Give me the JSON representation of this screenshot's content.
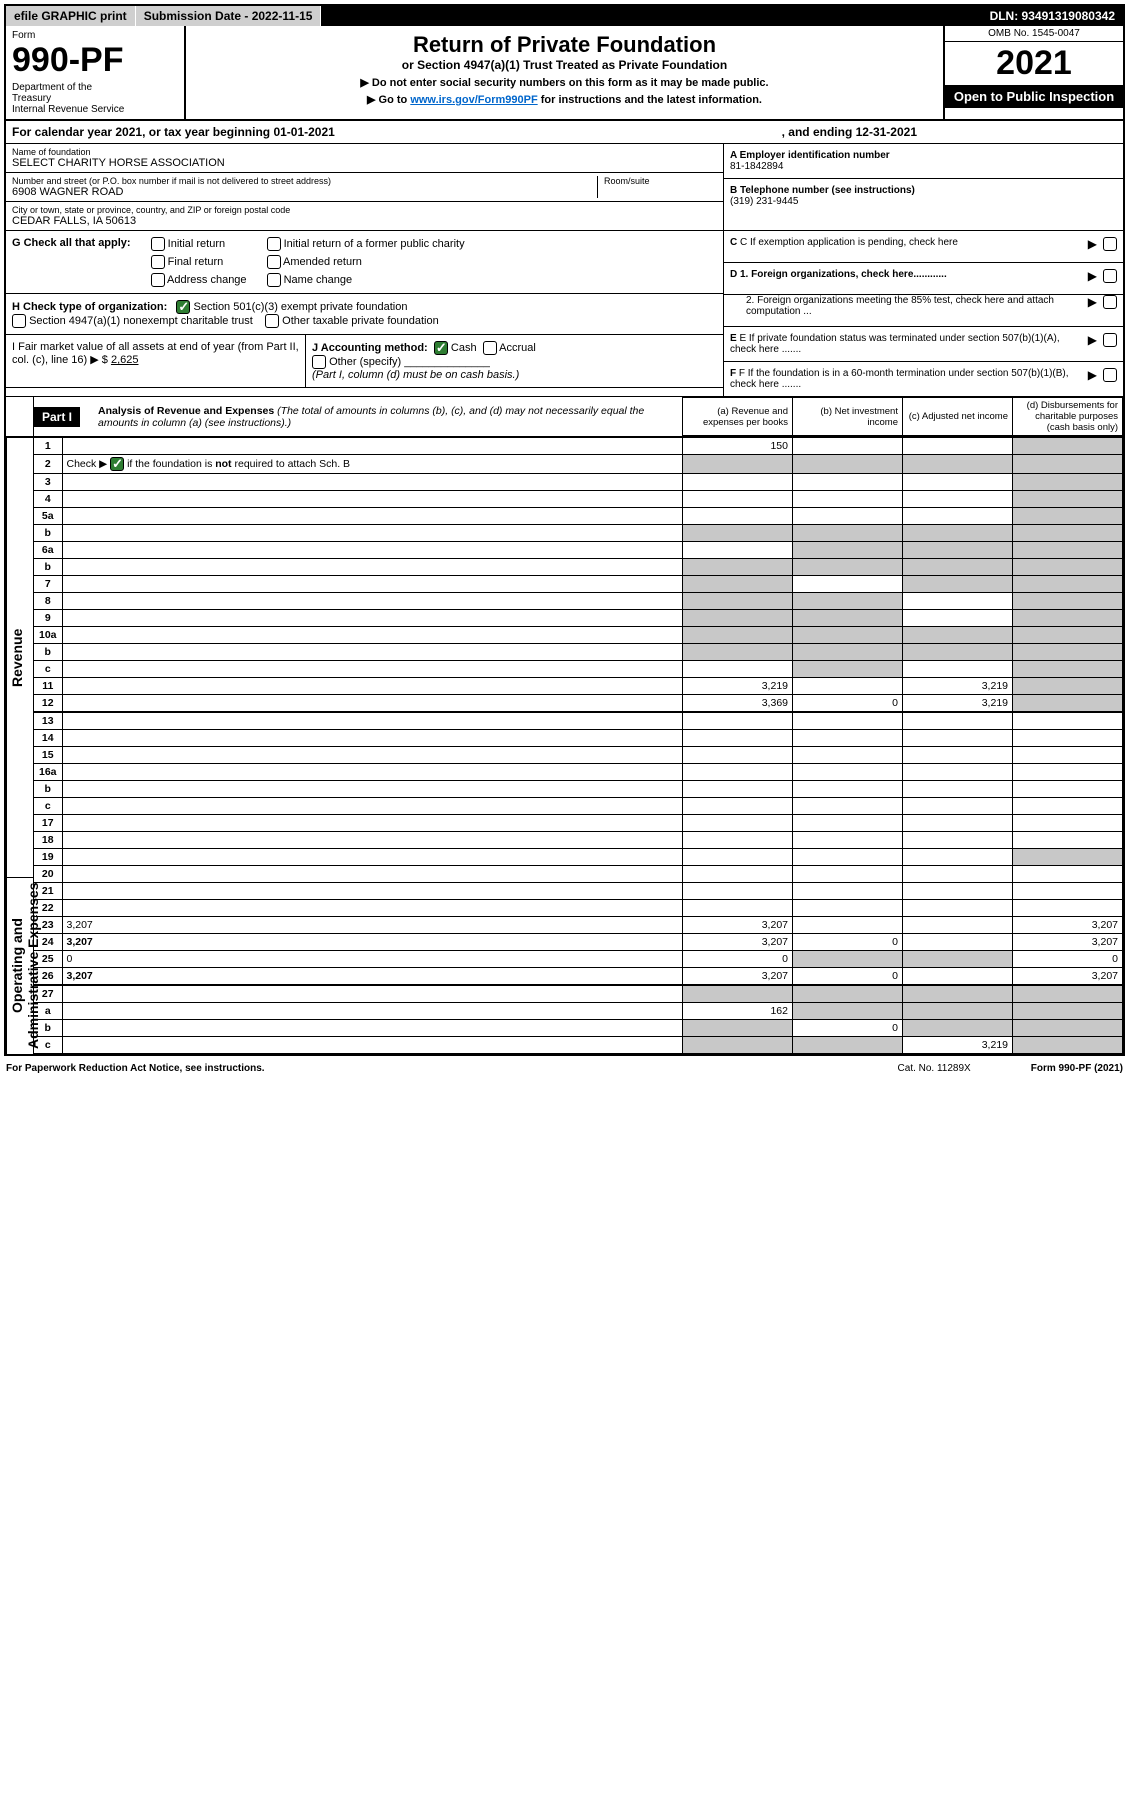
{
  "topbar": {
    "efile": "efile GRAPHIC print",
    "sub_label": "Submission Date - 2022-11-15",
    "dln": "DLN: 93491319080342"
  },
  "header": {
    "form_word": "Form",
    "form_num": "990-PF",
    "dept": "Department of the Treasury\nInternal Revenue Service",
    "title": "Return of Private Foundation",
    "subtitle1": "or Section 4947(a)(1) Trust Treated as Private Foundation",
    "subtitle2a": "▶ Do not enter social security numbers on this form as it may be made public.",
    "subtitle2b": "▶ Go to ",
    "link": "www.irs.gov/Form990PF",
    "subtitle2c": " for instructions and the latest information.",
    "omb": "OMB No. 1545-0047",
    "year": "2021",
    "open": "Open to Public Inspection"
  },
  "calendar": {
    "text": "For calendar year 2021, or tax year beginning 01-01-2021",
    "end": ", and ending 12-31-2021"
  },
  "ident": {
    "name_lbl": "Name of foundation",
    "name": "SELECT CHARITY HORSE ASSOCIATION",
    "addr_lbl": "Number and street (or P.O. box number if mail is not delivered to street address)",
    "addr": "6908 WAGNER ROAD",
    "room_lbl": "Room/suite",
    "city_lbl": "City or town, state or province, country, and ZIP or foreign postal code",
    "city": "CEDAR FALLS, IA  50613",
    "a_lbl": "A Employer identification number",
    "a_val": "81-1842894",
    "b_lbl": "B Telephone number (see instructions)",
    "b_val": "(319) 231-9445",
    "c_lbl": "C If exemption application is pending, check here",
    "d1_lbl": "D 1. Foreign organizations, check here............",
    "d2_lbl": "2. Foreign organizations meeting the 85% test, check here and attach computation ...",
    "e_lbl": "E If private foundation status was terminated under section 507(b)(1)(A), check here .......",
    "f_lbl": "F If the foundation is in a 60-month termination under section 507(b)(1)(B), check here .......",
    "g_lbl": "G Check all that apply:",
    "g_opts": [
      "Initial return",
      "Initial return of a former public charity",
      "Final return",
      "Amended return",
      "Address change",
      "Name change"
    ],
    "h_lbl": "H Check type of organization:",
    "h1": "Section 501(c)(3) exempt private foundation",
    "h2": "Section 4947(a)(1) nonexempt charitable trust",
    "h3": "Other taxable private foundation",
    "i_lbl": "I Fair market value of all assets at end of year (from Part II, col. (c), line 16) ▶ $",
    "i_val": "2,625",
    "j_lbl": "J Accounting method:",
    "j_cash": "Cash",
    "j_accrual": "Accrual",
    "j_other": "Other (specify)",
    "j_note": "(Part I, column (d) must be on cash basis.)"
  },
  "part1": {
    "label": "Part I",
    "title": "Analysis of Revenue and Expenses",
    "title_note": "(The total of amounts in columns (b), (c), and (d) may not necessarily equal the amounts in column (a) (see instructions).)",
    "cols": {
      "a": "(a) Revenue and expenses per books",
      "b": "(b) Net investment income",
      "c": "(c) Adjusted net income",
      "d": "(d) Disbursements for charitable purposes (cash basis only)"
    }
  },
  "sections": {
    "revenue": "Revenue",
    "expenses": "Operating and Administrative Expenses"
  },
  "rows": [
    {
      "n": "1",
      "d": "",
      "a": "150",
      "b": "",
      "c": "",
      "shade": [
        "d"
      ]
    },
    {
      "n": "2",
      "d": "",
      "a": "",
      "b": "",
      "c": "",
      "shade": [
        "a",
        "b",
        "c",
        "d"
      ],
      "ck": true
    },
    {
      "n": "3",
      "d": "",
      "a": "",
      "b": "",
      "c": "",
      "shade": [
        "d"
      ]
    },
    {
      "n": "4",
      "d": "",
      "a": "",
      "b": "",
      "c": "",
      "shade": [
        "d"
      ]
    },
    {
      "n": "5a",
      "d": "",
      "a": "",
      "b": "",
      "c": "",
      "shade": [
        "d"
      ]
    },
    {
      "n": "b",
      "d": "",
      "a": "",
      "b": "",
      "c": "",
      "shade": [
        "a",
        "b",
        "c",
        "d"
      ],
      "inset": true
    },
    {
      "n": "6a",
      "d": "",
      "a": "",
      "b": "",
      "c": "",
      "shade": [
        "b",
        "c",
        "d"
      ]
    },
    {
      "n": "b",
      "d": "",
      "a": "",
      "b": "",
      "c": "",
      "shade": [
        "a",
        "b",
        "c",
        "d"
      ],
      "inset": true
    },
    {
      "n": "7",
      "d": "",
      "a": "",
      "b": "",
      "c": "",
      "shade": [
        "a",
        "c",
        "d"
      ]
    },
    {
      "n": "8",
      "d": "",
      "a": "",
      "b": "",
      "c": "",
      "shade": [
        "a",
        "b",
        "d"
      ]
    },
    {
      "n": "9",
      "d": "",
      "a": "",
      "b": "",
      "c": "",
      "shade": [
        "a",
        "b",
        "d"
      ]
    },
    {
      "n": "10a",
      "d": "",
      "a": "",
      "b": "",
      "c": "",
      "shade": [
        "a",
        "b",
        "c",
        "d"
      ],
      "inset": true
    },
    {
      "n": "b",
      "d": "",
      "a": "",
      "b": "",
      "c": "",
      "shade": [
        "a",
        "b",
        "c",
        "d"
      ],
      "inset": true
    },
    {
      "n": "c",
      "d": "",
      "a": "",
      "b": "",
      "c": "",
      "shade": [
        "b",
        "d"
      ]
    },
    {
      "n": "11",
      "d": "",
      "a": "3,219",
      "b": "",
      "c": "3,219",
      "shade": [
        "d"
      ]
    },
    {
      "n": "12",
      "d": "",
      "a": "3,369",
      "b": "0",
      "c": "3,219",
      "shade": [
        "d"
      ],
      "bold": true
    }
  ],
  "exp_rows": [
    {
      "n": "13",
      "d": "",
      "a": "",
      "b": "",
      "c": ""
    },
    {
      "n": "14",
      "d": "",
      "a": "",
      "b": "",
      "c": ""
    },
    {
      "n": "15",
      "d": "",
      "a": "",
      "b": "",
      "c": ""
    },
    {
      "n": "16a",
      "d": "",
      "a": "",
      "b": "",
      "c": ""
    },
    {
      "n": "b",
      "d": "",
      "a": "",
      "b": "",
      "c": ""
    },
    {
      "n": "c",
      "d": "",
      "a": "",
      "b": "",
      "c": ""
    },
    {
      "n": "17",
      "d": "",
      "a": "",
      "b": "",
      "c": ""
    },
    {
      "n": "18",
      "d": "",
      "a": "",
      "b": "",
      "c": ""
    },
    {
      "n": "19",
      "d": "",
      "a": "",
      "b": "",
      "c": "",
      "shade": [
        "d"
      ]
    },
    {
      "n": "20",
      "d": "",
      "a": "",
      "b": "",
      "c": ""
    },
    {
      "n": "21",
      "d": "",
      "a": "",
      "b": "",
      "c": ""
    },
    {
      "n": "22",
      "d": "",
      "a": "",
      "b": "",
      "c": ""
    },
    {
      "n": "23",
      "d": "3,207",
      "a": "3,207",
      "b": "",
      "c": ""
    },
    {
      "n": "24",
      "d": "3,207",
      "a": "3,207",
      "b": "0",
      "c": "",
      "bold": true
    },
    {
      "n": "25",
      "d": "0",
      "a": "0",
      "b": "",
      "c": "",
      "shade": [
        "b",
        "c"
      ]
    },
    {
      "n": "26",
      "d": "3,207",
      "a": "3,207",
      "b": "0",
      "c": "",
      "bold": true
    }
  ],
  "net_rows": [
    {
      "n": "27",
      "d": "",
      "a": "",
      "b": "",
      "c": "",
      "shade": [
        "a",
        "b",
        "c",
        "d"
      ]
    },
    {
      "n": "a",
      "d": "",
      "a": "162",
      "b": "",
      "c": "",
      "shade": [
        "b",
        "c",
        "d"
      ],
      "bold": true
    },
    {
      "n": "b",
      "d": "",
      "a": "",
      "b": "0",
      "c": "",
      "shade": [
        "a",
        "c",
        "d"
      ],
      "bold": true
    },
    {
      "n": "c",
      "d": "",
      "a": "",
      "b": "",
      "c": "3,219",
      "shade": [
        "a",
        "b",
        "d"
      ],
      "bold": true
    }
  ],
  "footer": {
    "pra": "For Paperwork Reduction Act Notice, see instructions.",
    "cat": "Cat. No. 11289X",
    "form": "Form 990-PF (2021)"
  },
  "colors": {
    "shade": "#c8c8c8",
    "link": "#0066cc",
    "check": "#2e7d32"
  }
}
